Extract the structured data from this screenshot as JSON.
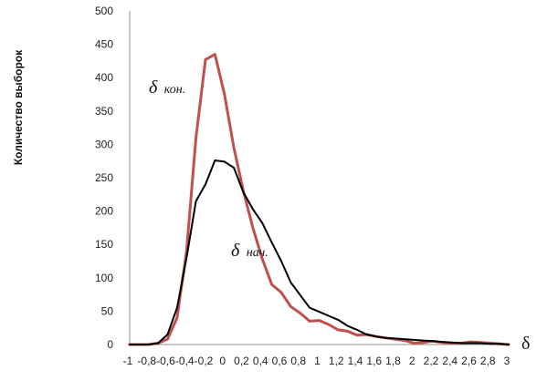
{
  "chart_data": {
    "type": "line",
    "title": "",
    "xlabel": "δ",
    "ylabel": "Количество выборок",
    "xlim": [
      -1,
      3
    ],
    "ylim": [
      0,
      500
    ],
    "x_ticks": [
      "-1",
      "-0,8",
      "-0,6",
      "-0,4",
      "-0,2",
      "0",
      "0,2",
      "0,4",
      "0,6",
      "0,8",
      "1",
      "1,2",
      "1,4",
      "1,6",
      "1,8",
      "2",
      "2,2",
      "2,4",
      "2,6",
      "2,8",
      "3"
    ],
    "y_ticks": [
      "0",
      "50",
      "100",
      "150",
      "200",
      "250",
      "300",
      "350",
      "400",
      "450",
      "500"
    ],
    "grid": false,
    "legend": "none",
    "x": [
      -1,
      -0.9,
      -0.8,
      -0.7,
      -0.6,
      -0.5,
      -0.4,
      -0.3,
      -0.2,
      -0.1,
      0,
      0.1,
      0.2,
      0.3,
      0.4,
      0.5,
      0.6,
      0.7,
      0.8,
      0.9,
      1,
      1.1,
      1.2,
      1.3,
      1.4,
      1.5,
      1.6,
      1.7,
      1.8,
      1.9,
      2,
      2.1,
      2.2,
      2.3,
      2.4,
      2.5,
      2.6,
      2.7,
      2.8,
      2.9,
      3
    ],
    "series": [
      {
        "name": "δ кон.",
        "label_main": "δ",
        "label_sub": "кон.",
        "color": "#c0504d",
        "values": [
          0,
          0,
          0,
          2,
          8,
          40,
          140,
          310,
          427,
          435,
          375,
          295,
          230,
          175,
          128,
          90,
          78,
          57,
          47,
          35,
          36,
          30,
          22,
          20,
          14,
          15,
          12,
          10,
          8,
          6,
          2,
          3,
          5,
          3,
          2,
          2,
          4,
          3,
          2,
          1,
          0
        ]
      },
      {
        "name": "δ нач.",
        "label_main": "δ",
        "label_sub": "нач.",
        "color": "#000000",
        "values": [
          0,
          0,
          0,
          2,
          15,
          55,
          130,
          215,
          240,
          276,
          274,
          265,
          228,
          203,
          182,
          153,
          125,
          93,
          74,
          55,
          49,
          43,
          37,
          28,
          22,
          15,
          12,
          10,
          9,
          8,
          7,
          6,
          5,
          4,
          3,
          2,
          2,
          2,
          1,
          1,
          0
        ]
      }
    ]
  }
}
